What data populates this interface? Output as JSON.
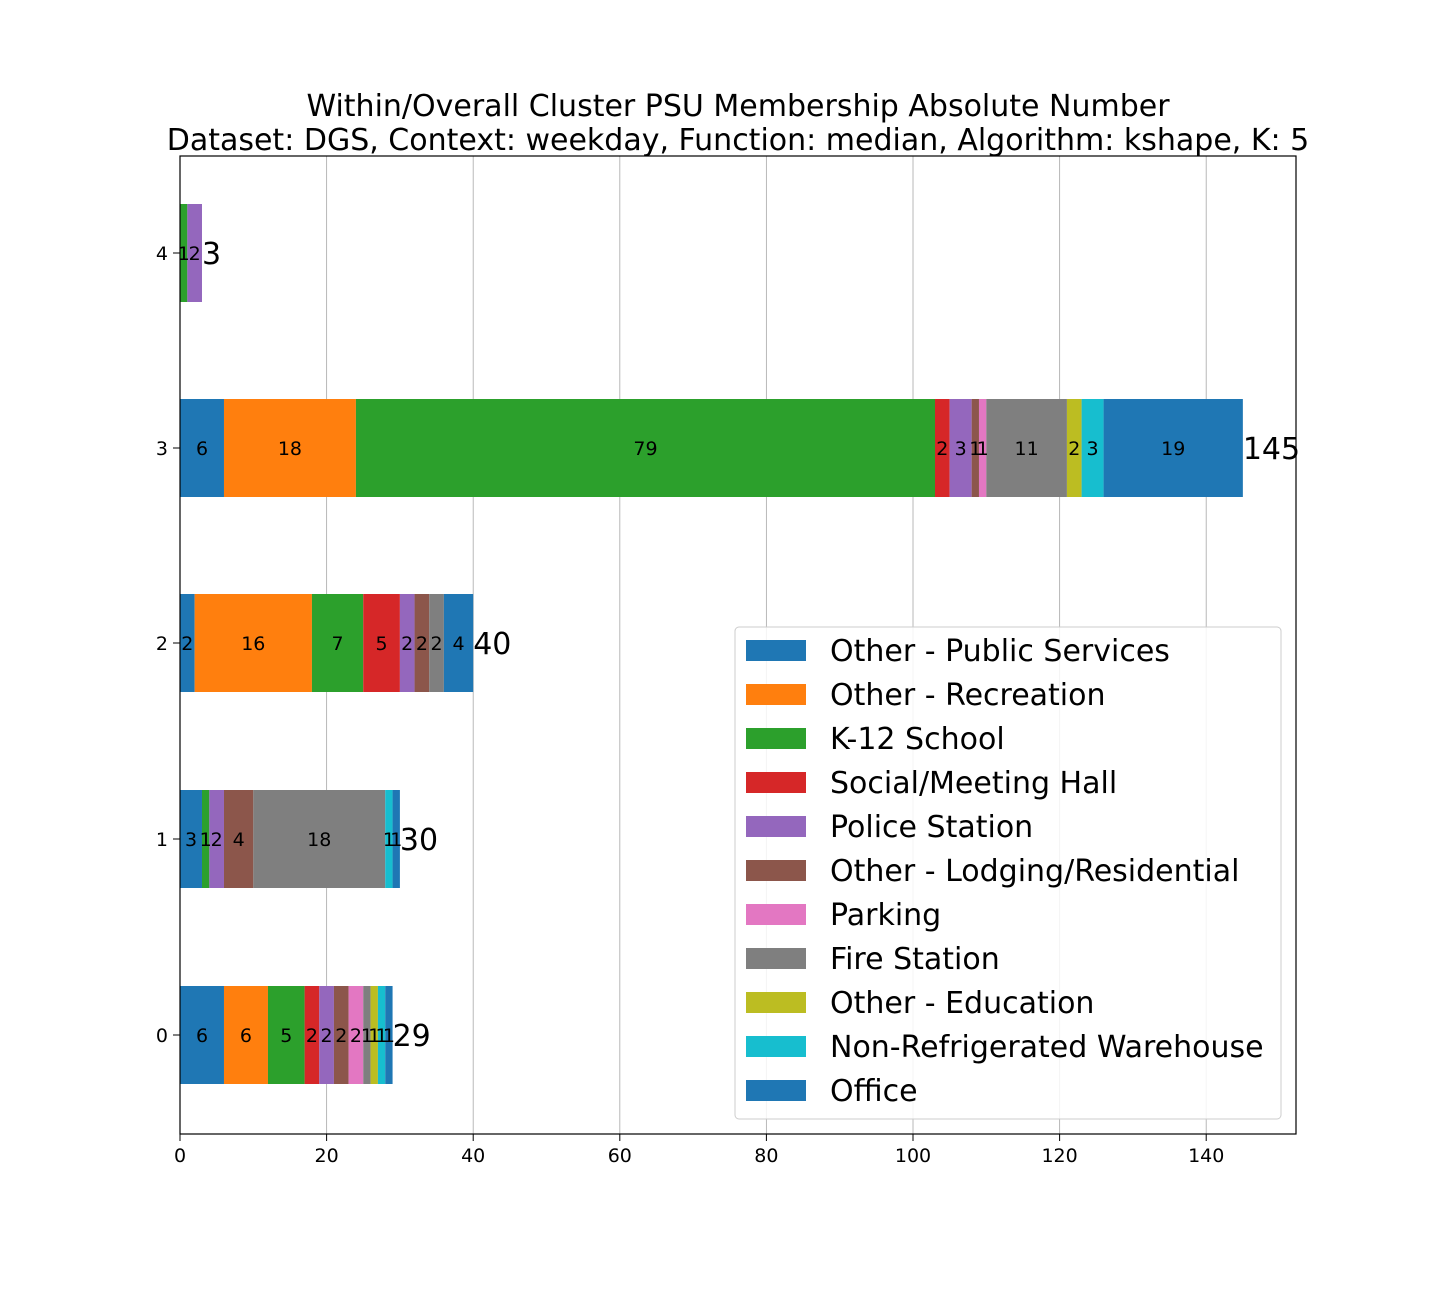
{
  "chart_data": {
    "type": "bar",
    "orientation": "horizontal",
    "stacked": true,
    "title": [
      "Within/Overall Cluster PSU Membership Absolute Number",
      "Dataset: DGS, Context: weekday, Function: median, Algorithm: kshape, K: 5"
    ],
    "xlabel": "",
    "ylabel": "",
    "xlim": [
      0,
      152.25
    ],
    "xticks": [
      0,
      20,
      40,
      60,
      80,
      100,
      120,
      140
    ],
    "grid": "vertical",
    "legend_position": "lower-right",
    "categories": [
      "0",
      "1",
      "2",
      "3",
      "4"
    ],
    "series": [
      {
        "name": "Other - Public Services",
        "color": "#1f77b4",
        "values": [
          6,
          3,
          2,
          6,
          0
        ]
      },
      {
        "name": "Other - Recreation",
        "color": "#ff7f0e",
        "values": [
          6,
          0,
          16,
          18,
          0
        ]
      },
      {
        "name": "K-12 School",
        "color": "#2ca02c",
        "values": [
          5,
          1,
          7,
          79,
          1
        ]
      },
      {
        "name": "Social/Meeting Hall",
        "color": "#d62728",
        "values": [
          2,
          0,
          5,
          2,
          0
        ]
      },
      {
        "name": "Police Station",
        "color": "#9467bd",
        "values": [
          2,
          2,
          2,
          3,
          2
        ]
      },
      {
        "name": "Other - Lodging/Residential",
        "color": "#8c564b",
        "values": [
          2,
          4,
          2,
          1,
          0
        ]
      },
      {
        "name": "Parking",
        "color": "#e377c2",
        "values": [
          2,
          0,
          0,
          1,
          0
        ]
      },
      {
        "name": "Fire Station",
        "color": "#7f7f7f",
        "values": [
          1,
          18,
          2,
          11,
          0
        ]
      },
      {
        "name": "Other - Education",
        "color": "#bcbd22",
        "values": [
          1,
          0,
          0,
          2,
          0
        ]
      },
      {
        "name": "Non-Refrigerated Warehouse",
        "color": "#17becf",
        "values": [
          1,
          1,
          0,
          3,
          0
        ]
      },
      {
        "name": "Office",
        "color": "#1f77b4",
        "values": [
          1,
          1,
          4,
          19,
          0
        ]
      }
    ],
    "totals": [
      29,
      30,
      40,
      145,
      3
    ]
  }
}
